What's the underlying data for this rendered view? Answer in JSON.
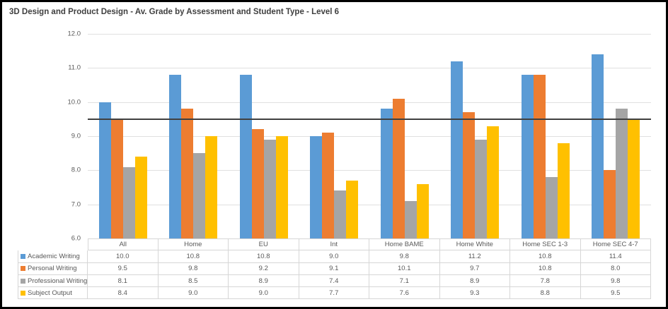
{
  "title": "3D Design and Product Design - Av. Grade by Assessment and Student Type - Level 6",
  "chart_data": {
    "type": "bar",
    "title": "3D Design and Product Design - Av. Grade by Assessment and Student Type - Level 6",
    "categories": [
      "All",
      "Home",
      "EU",
      "Int",
      "Home BAME",
      "Home White",
      "Home SEC 1-3",
      "Home SEC 4-7"
    ],
    "series": [
      {
        "name": "Academic Writing",
        "color": "#5B9BD5",
        "values": [
          10.0,
          10.8,
          10.8,
          9.0,
          9.8,
          11.2,
          10.8,
          11.4
        ]
      },
      {
        "name": "Personal Writing",
        "color": "#ED7D31",
        "values": [
          9.5,
          9.8,
          9.2,
          9.1,
          10.1,
          9.7,
          10.8,
          8.0
        ]
      },
      {
        "name": "Professional Writing",
        "color": "#A5A5A5",
        "values": [
          8.1,
          8.5,
          8.9,
          7.4,
          7.1,
          8.9,
          7.8,
          9.8
        ]
      },
      {
        "name": "Subject Output",
        "color": "#FFC000",
        "values": [
          8.4,
          9.0,
          9.0,
          7.7,
          7.6,
          9.3,
          8.8,
          9.5
        ]
      }
    ],
    "xlabel": "",
    "ylabel": "",
    "ylim": [
      6.0,
      12.0
    ],
    "ytick_step": 1.0,
    "yticks": [
      "12.0",
      "11.0",
      "10.0",
      "9.0",
      "8.0",
      "7.0",
      "6.0"
    ],
    "reference_line": 9.5,
    "grid": true,
    "legend_position": "table-left",
    "value_format": "one-decimal"
  },
  "colors": {
    "series_blue": "#5B9BD5",
    "series_orange": "#ED7D31",
    "series_gray": "#A5A5A5",
    "series_yellow": "#FFC000",
    "gridline": "#E0E0E0",
    "table_border": "#D6D6D6",
    "reference_line": "#404040",
    "axis_text": "#595959",
    "title_text": "#3F3F3F",
    "frame_border": "#000000",
    "background": "#FFFFFF"
  }
}
